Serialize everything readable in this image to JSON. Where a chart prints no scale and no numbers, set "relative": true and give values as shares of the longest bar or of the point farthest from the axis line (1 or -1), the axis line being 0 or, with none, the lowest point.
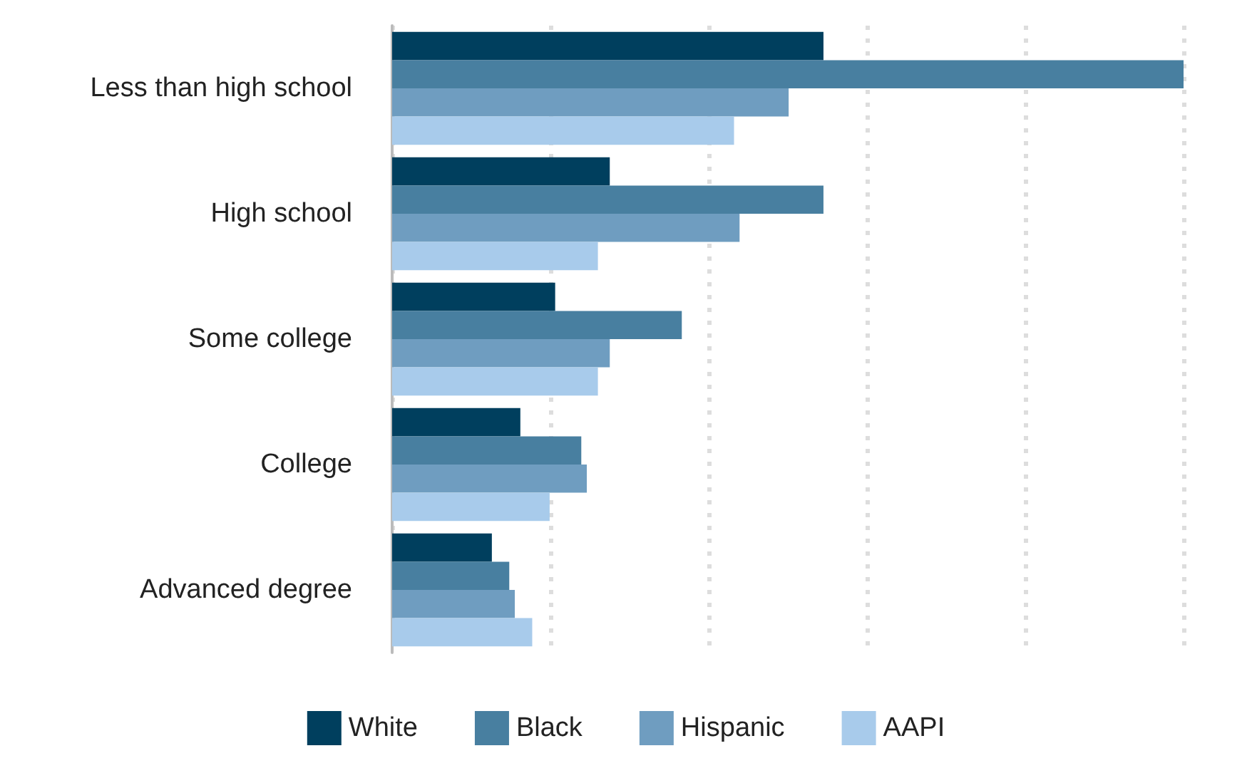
{
  "chart_data": {
    "type": "bar",
    "orientation": "horizontal",
    "relative": true,
    "categories": [
      "Less than high school",
      "High school",
      "Some college",
      "College",
      "Advanced degree"
    ],
    "series": [
      {
        "name": "White",
        "color": "#003f5e",
        "values": [
          0.545,
          0.275,
          0.206,
          0.162,
          0.126
        ]
      },
      {
        "name": "Black",
        "color": "#487fa0",
        "values": [
          1,
          0.545,
          0.366,
          0.239,
          0.148
        ]
      },
      {
        "name": "Hispanic",
        "color": "#6f9dc0",
        "values": [
          0.501,
          0.439,
          0.275,
          0.246,
          0.155
        ]
      },
      {
        "name": "AAPI",
        "color": "#a8cbeb",
        "values": [
          0.432,
          0.26,
          0.26,
          0.199,
          0.177
        ]
      }
    ],
    "grid": "x",
    "legend": "bottom"
  }
}
